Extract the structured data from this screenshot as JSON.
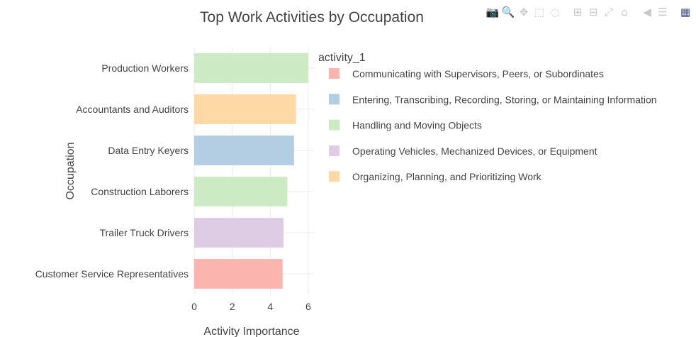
{
  "chart_data": {
    "type": "bar",
    "orientation": "horizontal",
    "title": "Top Work Activities by Occupation",
    "xlabel": "Activity Importance",
    "ylabel": "Occupation",
    "xlim": [
      0,
      6.3
    ],
    "xticks": [
      0,
      2,
      4,
      6
    ],
    "grid": true,
    "legend_title": "activity_1",
    "legend_position": "right",
    "categories": [
      "Production Workers",
      "Accountants and Auditors",
      "Data Entry Keyers",
      "Construction Laborers",
      "Trailer Truck Drivers",
      "Customer Service Representatives"
    ],
    "values": [
      6.0,
      5.35,
      5.25,
      4.9,
      4.7,
      4.65
    ],
    "bar_activity": [
      "Handling and Moving Objects",
      "Organizing, Planning, and Prioritizing Work",
      "Entering, Transcribing, Recording, Storing, or Maintaining Information",
      "Handling and Moving Objects",
      "Operating Vehicles, Mechanized Devices, or Equipment",
      "Communicating with Supervisors, Peers, or Subordinates"
    ],
    "legend": [
      {
        "name": "Communicating with Supervisors, Peers, or Subordinates",
        "color": "#fbb4ae"
      },
      {
        "name": "Entering, Transcribing, Recording, Storing, or Maintaining Information",
        "color": "#b3cde3"
      },
      {
        "name": "Handling and Moving Objects",
        "color": "#ccebc5"
      },
      {
        "name": "Operating Vehicles, Mechanized Devices, or Equipment",
        "color": "#decbe4"
      },
      {
        "name": "Organizing, Planning, and Prioritizing Work",
        "color": "#fed9a6"
      }
    ]
  },
  "modebar": {
    "buttons": [
      {
        "name": "camera-icon",
        "glyph": "📷"
      },
      {
        "name": "zoom-icon",
        "glyph": "🔍"
      },
      {
        "name": "pan-icon",
        "glyph": "✥"
      },
      {
        "name": "box-select-icon",
        "glyph": "⬚"
      },
      {
        "name": "lasso-select-icon",
        "glyph": "◌"
      },
      {
        "name": "zoom-in-icon",
        "glyph": "⊞"
      },
      {
        "name": "zoom-out-icon",
        "glyph": "⊟"
      },
      {
        "name": "autoscale-icon",
        "glyph": "⤢"
      },
      {
        "name": "reset-axes-icon",
        "glyph": "⌂"
      },
      {
        "name": "hover-closest-icon",
        "glyph": "◀"
      },
      {
        "name": "hover-compare-icon",
        "glyph": "☰"
      },
      {
        "name": "plotly-logo-icon",
        "glyph": "▦"
      }
    ]
  }
}
